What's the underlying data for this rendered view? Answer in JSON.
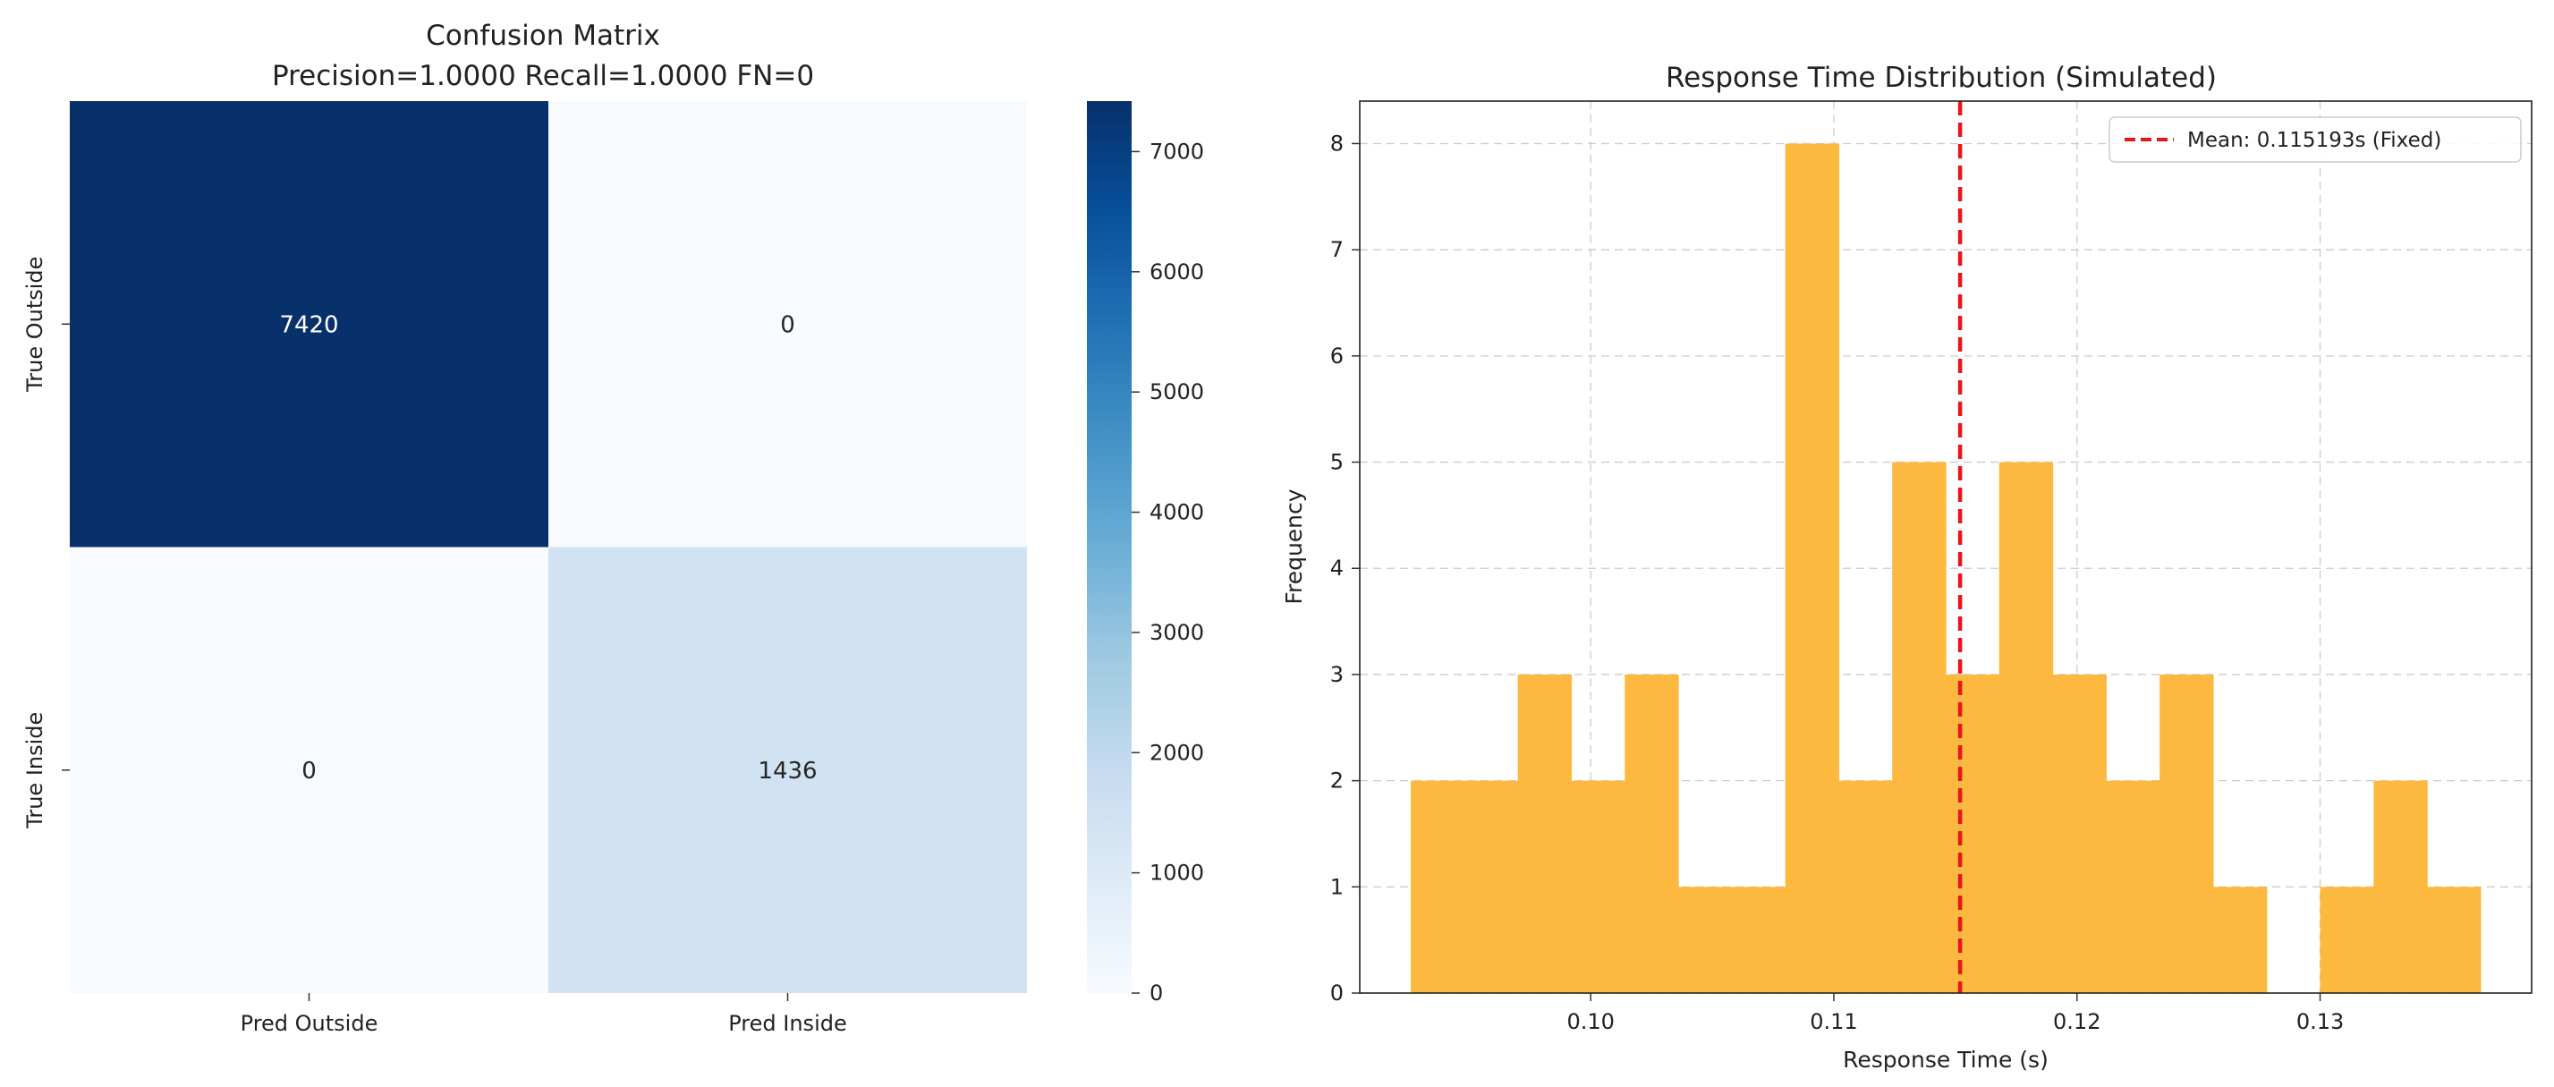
{
  "chart_data": [
    {
      "type": "heatmap",
      "title": "Confusion Matrix",
      "subtitle": "Precision=1.0000  Recall=1.0000  FN=0",
      "row_labels": [
        "True Outside",
        "True Inside"
      ],
      "col_labels": [
        "Pred Outside",
        "Pred Inside"
      ],
      "values": [
        [
          7420,
          0
        ],
        [
          0,
          1436
        ]
      ],
      "colorbar": {
        "min": 0,
        "max": 7420,
        "ticks": [
          0,
          1000,
          2000,
          3000,
          4000,
          5000,
          6000,
          7000
        ],
        "low_color": "#f7fbff",
        "high_color": "#08306b",
        "colormap": "Blues"
      }
    },
    {
      "type": "bar",
      "subtype": "histogram",
      "title": "Response Time Distribution (Simulated)",
      "xlabel": "Response Time (s)",
      "ylabel": "Frequency",
      "xlim": [
        0.0905,
        0.1387
      ],
      "ylim": [
        0,
        8.4
      ],
      "xticks": [
        "0.10",
        "0.11",
        "0.12",
        "0.13"
      ],
      "xtick_values": [
        0.1,
        0.11,
        0.12,
        0.13
      ],
      "yticks": [
        0,
        1,
        2,
        3,
        4,
        5,
        6,
        7,
        8
      ],
      "bin_edges": [
        0.0926,
        0.0948,
        0.097,
        0.0992,
        0.1014,
        0.1036,
        0.1058,
        0.108,
        0.1102,
        0.1124,
        0.1146,
        0.1168,
        0.119,
        0.1212,
        0.1234,
        0.1256,
        0.1278,
        0.13,
        0.1322,
        0.1344,
        0.1366
      ],
      "values": [
        2,
        2,
        3,
        2,
        3,
        1,
        1,
        8,
        2,
        5,
        3,
        5,
        3,
        2,
        3,
        1,
        0,
        1,
        2,
        1
      ],
      "bar_color": "#fdb93f",
      "grid": true,
      "mean_line": {
        "x": 0.115193,
        "label": "Mean: 0.115193s (Fixed)",
        "color": "#e8161b"
      },
      "legend_position": "top-right"
    }
  ]
}
